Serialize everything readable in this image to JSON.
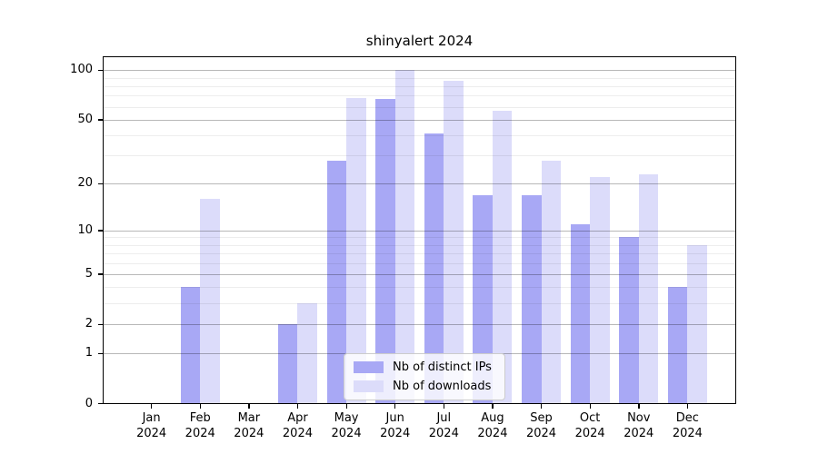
{
  "chart_data": {
    "type": "bar",
    "title": "shinyalert 2024",
    "categories": [
      "Jan",
      "Feb",
      "Mar",
      "Apr",
      "May",
      "Jun",
      "Jul",
      "Aug",
      "Sep",
      "Oct",
      "Nov",
      "Dec"
    ],
    "x_year": "2024",
    "series": [
      {
        "name": "Nb of distinct IPs",
        "color": "#a8a8f5",
        "values": [
          0,
          4,
          0,
          2,
          28,
          67,
          41,
          17,
          17,
          11,
          9,
          4
        ]
      },
      {
        "name": "Nb of downloads",
        "color": "#dcdcfa",
        "values": [
          0,
          16,
          0,
          3,
          68,
          100,
          86,
          57,
          28,
          22,
          23,
          8
        ]
      }
    ],
    "y_scale": "log1p",
    "y_max": 121.6,
    "y_ticks": [
      0,
      1,
      2,
      5,
      10,
      20,
      50,
      100
    ],
    "y_minor_ticks": [
      3,
      4,
      6,
      7,
      8,
      9,
      30,
      40,
      60,
      70,
      80,
      90
    ],
    "grid": true,
    "legend_position": "lower center",
    "axis_color": "#000000",
    "background_color": "#ffffff"
  }
}
